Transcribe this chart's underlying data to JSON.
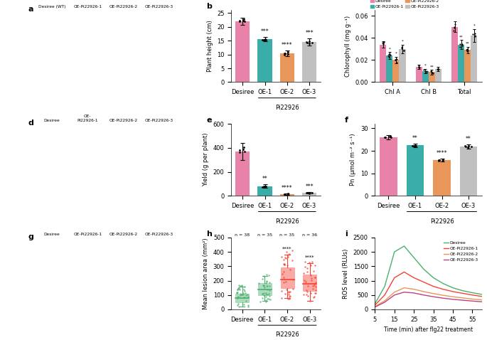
{
  "panel_b": {
    "categories": [
      "Desiree",
      "OE-1",
      "OE-2",
      "OE-3"
    ],
    "values": [
      22.0,
      15.5,
      10.5,
      14.5
    ],
    "errors": [
      1.2,
      0.8,
      1.0,
      1.2
    ],
    "colors": [
      "#e882a8",
      "#3aada8",
      "#e8965a",
      "#c0c0c0"
    ],
    "ylabel": "Plant height (cm)",
    "ylim": [
      0,
      26
    ],
    "yticks": [
      0,
      5,
      10,
      15,
      20,
      25
    ],
    "sig_labels": [
      "",
      "***",
      "****",
      "***"
    ]
  },
  "panel_c": {
    "groups": [
      "Chl A",
      "Chl B",
      "Total"
    ],
    "series_names": [
      "Desiree",
      "OE-Pi22926-1",
      "OE-Pi22926-2",
      "OE-Pi22926-3"
    ],
    "values": [
      [
        0.034,
        0.024,
        0.02,
        0.03
      ],
      [
        0.014,
        0.01,
        0.009,
        0.012
      ],
      [
        0.05,
        0.034,
        0.029,
        0.042
      ]
    ],
    "errors": [
      [
        0.003,
        0.003,
        0.003,
        0.004
      ],
      [
        0.002,
        0.002,
        0.002,
        0.002
      ],
      [
        0.005,
        0.004,
        0.003,
        0.006
      ]
    ],
    "colors": [
      "#e882a8",
      "#3aada8",
      "#e8965a",
      "#c0c0c0"
    ],
    "ylabel": "Chlorophyll (mg g⁻¹)",
    "ylim": [
      0,
      0.065
    ],
    "yticks": [
      0,
      0.02,
      0.04,
      0.06
    ],
    "sig_labels": [
      [
        "",
        "*",
        "*",
        "*"
      ],
      [
        "",
        "*",
        "**",
        ""
      ],
      [
        "",
        "**",
        "**",
        "*"
      ]
    ]
  },
  "panel_e": {
    "categories": [
      "Desiree",
      "OE-1",
      "OE-2",
      "OE-3"
    ],
    "values": [
      370.0,
      80.0,
      15.0,
      25.0
    ],
    "errors": [
      70.0,
      15.0,
      5.0,
      8.0
    ],
    "colors": [
      "#e882a8",
      "#3aada8",
      "#e8965a",
      "#c0c0c0"
    ],
    "ylabel": "Yield (g per plant)",
    "ylim": [
      0,
      600
    ],
    "yticks": [
      0,
      200,
      400,
      600
    ],
    "sig_labels": [
      "",
      "**",
      "****",
      "***"
    ]
  },
  "panel_f": {
    "categories": [
      "Desiree",
      "OE-1",
      "OE-2",
      "OE-3"
    ],
    "values": [
      26.0,
      22.5,
      16.0,
      22.0
    ],
    "errors": [
      1.0,
      0.8,
      0.6,
      1.0
    ],
    "colors": [
      "#e882a8",
      "#3aada8",
      "#e8965a",
      "#c0c0c0"
    ],
    "ylabel": "Pn (µmol m⁻² s⁻¹)",
    "ylim": [
      0,
      32
    ],
    "yticks": [
      0,
      10,
      20,
      30
    ],
    "sig_labels": [
      "",
      "**",
      "****",
      "**"
    ]
  },
  "panel_h": {
    "categories": [
      "Desiree",
      "OE-1",
      "OE-2",
      "OE-3"
    ],
    "n_labels": [
      "n = 38",
      "n = 35",
      "n = 35",
      "n = 36"
    ],
    "medians": [
      80,
      140,
      210,
      180
    ],
    "q1": [
      50,
      100,
      150,
      130
    ],
    "q3": [
      110,
      185,
      290,
      240
    ],
    "whisker_low": [
      20,
      60,
      80,
      60
    ],
    "whisker_high": [
      160,
      230,
      380,
      320
    ],
    "colors": [
      "#4caf6e",
      "#4caf6e",
      "#f44336",
      "#f44336"
    ],
    "ylabel": "Mean lesion area (mm²)",
    "ylim": [
      0,
      500
    ],
    "yticks": [
      0,
      100,
      200,
      300,
      400,
      500
    ],
    "sig_labels": [
      "",
      "",
      "****",
      "****"
    ]
  },
  "panel_i": {
    "time": [
      5,
      10,
      15,
      20,
      25,
      30,
      35,
      40,
      45,
      50,
      55,
      60
    ],
    "series": {
      "Desiree": [
        200,
        800,
        2000,
        2200,
        1800,
        1400,
        1100,
        900,
        750,
        650,
        580,
        520
      ],
      "OE-Pi22926-1": [
        150,
        500,
        1100,
        1300,
        1100,
        950,
        800,
        700,
        620,
        560,
        500,
        450
      ],
      "OE-Pi22926-2": [
        100,
        300,
        600,
        750,
        700,
        620,
        550,
        490,
        440,
        400,
        360,
        330
      ],
      "OE-Pi22926-3": [
        80,
        250,
        500,
        600,
        570,
        500,
        440,
        390,
        350,
        320,
        290,
        265
      ]
    },
    "colors": {
      "Desiree": "#4caf6e",
      "OE-Pi22926-1": "#f44336",
      "OE-Pi22926-2": "#e8965a",
      "OE-Pi22926-3": "#c04080"
    },
    "ylabel": "ROS level (RLUs)",
    "xlabel": "Time (min) after flg22 treatment",
    "ylim": [
      0,
      2500
    ],
    "yticks": [
      0,
      500,
      1000,
      1500,
      2000,
      2500
    ]
  },
  "photo_panels": {
    "a_sublabels": [
      "Desiree (WT)",
      "OE-Pi22926-1",
      "OE-Pi22926-2",
      "OE-Pi22926-3"
    ],
    "d_sublabels": [
      "Desiree",
      "OE-\nPi22926-1",
      "OE-Pi22926-2",
      "OE-Pi22926-3"
    ],
    "g_sublabels": [
      "Desiree",
      "OE-Pi22926-1",
      "OE-Pi22926-2",
      "OE-Pi22926-3"
    ]
  }
}
